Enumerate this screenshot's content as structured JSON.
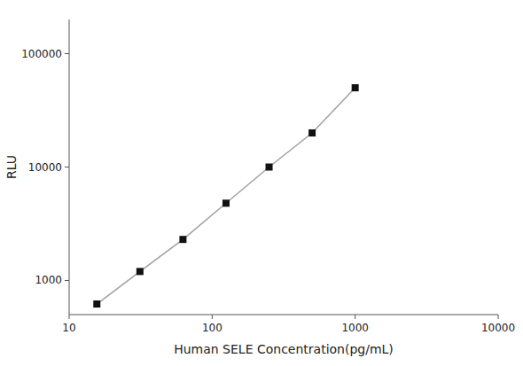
{
  "chart_data": {
    "type": "line",
    "x": [
      15.625,
      31.25,
      62.5,
      125,
      250,
      500,
      1000
    ],
    "values": [
      620,
      1200,
      2300,
      4800,
      10000,
      20000,
      50000
    ],
    "xlabel": "Human SELE Concentration(pg/mL)",
    "ylabel": "RLU",
    "xlim": [
      10,
      10000
    ],
    "ylim": [
      500,
      200000
    ],
    "xticks": [
      10,
      100,
      1000,
      10000
    ],
    "yticks": [
      1000,
      10000,
      100000
    ],
    "log": true,
    "grid": false,
    "marker": "square",
    "line_style": "solid",
    "color": "#111111"
  }
}
